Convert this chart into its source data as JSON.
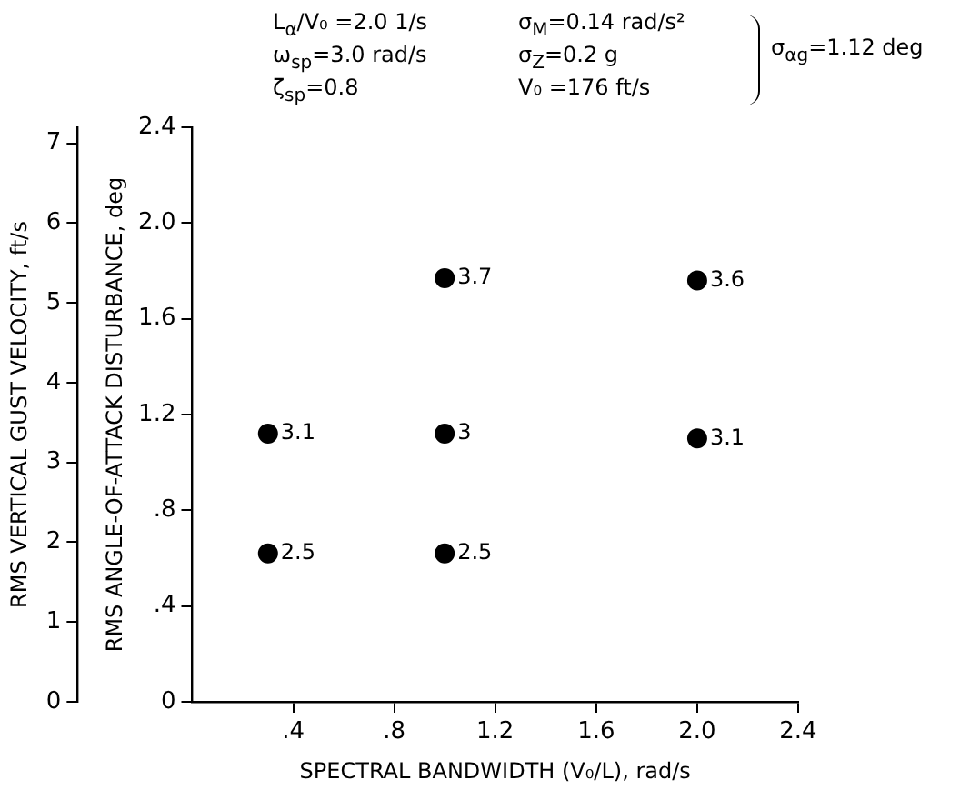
{
  "chart_data": {
    "type": "scatter",
    "xlabel": "SPECTRAL BANDWIDTH (V₀/L), rad/s",
    "ylabel": "RMS ANGLE-OF-ATTACK DISTURBANCE, deg",
    "y2label": "RMS VERTICAL GUST VELOCITY, ft/s",
    "annotations": [
      "L$_{α}$/V₀ =2.0 1/s",
      "ω$_{sp}$=3.0 rad/s",
      "ζ$_{sp}$=0.8",
      "σ$_{M}$=0.14 rad/s²",
      "σ$_{Z}$=0.2 g",
      "V₀ =176 ft/s",
      "σ$_{αg}$=1.12 deg",
      {
        "text": "3.1",
        "x": 0.3,
        "y": 1.12
      },
      {
        "text": "2.5",
        "x": 0.3,
        "y": 0.62
      },
      {
        "text": "3.7",
        "x": 1.0,
        "y": 1.77
      },
      {
        "text": "3",
        "x": 1.0,
        "y": 1.12
      },
      {
        "text": "2.5",
        "x": 1.0,
        "y": 0.62
      },
      {
        "text": "3.6",
        "x": 2.0,
        "y": 1.76
      },
      {
        "text": "3.1",
        "x": 2.0,
        "y": 1.1
      }
    ],
    "x": [
      0.3,
      0.3,
      1.0,
      1.0,
      1.0,
      2.0,
      2.0
    ],
    "values": [
      1.12,
      0.62,
      1.77,
      1.12,
      0.62,
      1.76,
      1.1
    ],
    "color": "#000000",
    "marker": "circle",
    "xlim": [
      0,
      2.4
    ],
    "xticks": [
      {
        "value": 0.4,
        "label": ".4"
      },
      {
        "value": 0.8,
        "label": ".8"
      },
      1.2,
      1.6,
      {
        "value": 2.0,
        "label": "2.0"
      },
      2.4
    ],
    "ylim": [
      0,
      2.4
    ],
    "yticks": [
      0,
      {
        "value": 0.4,
        "label": ".4"
      },
      {
        "value": 0.8,
        "label": ".8"
      },
      1.2,
      1.6,
      {
        "value": 2.0,
        "label": "2.0"
      },
      2.4
    ],
    "y2lim": [
      0,
      7.2
    ],
    "y2ticks": [
      0,
      1,
      2,
      3,
      4,
      5,
      6,
      7
    ],
    "grid": false
  }
}
